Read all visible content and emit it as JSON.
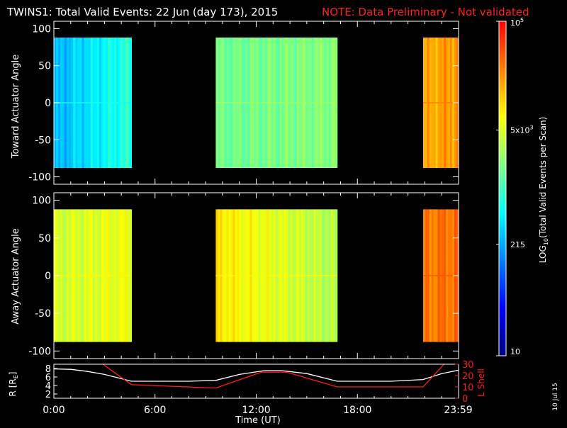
{
  "header": {
    "title": "TWINS1: Total Valid Events: 22 Jun (day 173), 2015",
    "note": "NOTE: Data Preliminary - Not validated"
  },
  "colors": {
    "background": "#000000",
    "axis": "#ffffff",
    "note": "#ff2020",
    "r_line": "#ffffff",
    "lshell_line": "#ff1a1a"
  },
  "colorbar": {
    "label": "LOG10(Total Valid Events per Scan)",
    "label_parts": [
      "LOG",
      "10",
      "(Total Valid Events per Scan)"
    ],
    "tick_labels": [
      {
        "text": "10",
        "value": 10
      },
      {
        "text": "215",
        "value": 215
      },
      {
        "text": "5x10",
        "sup": "3",
        "value": 5000
      },
      {
        "text": "10",
        "sup": "5",
        "value": 100000
      }
    ],
    "colormap": [
      "#000080",
      "#0000ff",
      "#0080ff",
      "#00ffff",
      "#80ff80",
      "#ffff00",
      "#ff8000",
      "#ff0000"
    ]
  },
  "footer": {
    "date_stamp": "10 Jul 15"
  },
  "chart_data": [
    {
      "type": "heatmap",
      "ylabel": "Toward Actuator Angle",
      "xlim": [
        0,
        24
      ],
      "ylim": [
        -110,
        110
      ],
      "yticks": [
        "100",
        "50",
        "0",
        "-50",
        "-100"
      ],
      "ytick_values": [
        100,
        50,
        0,
        -50,
        -100
      ],
      "data_y_range": [
        -88,
        88
      ],
      "blocks": [
        {
          "x_start": 0.0,
          "x_end": 4.6,
          "level_start": 0.34,
          "level_end": 0.48
        },
        {
          "x_start": 9.6,
          "x_end": 16.8,
          "level_start": 0.55,
          "level_end": 0.58
        },
        {
          "x_start": 21.9,
          "x_end": 23.99,
          "level_start": 0.8,
          "level_end": 0.84
        }
      ]
    },
    {
      "type": "heatmap",
      "ylabel": "Away Actuator Angle",
      "xlim": [
        0,
        24
      ],
      "ylim": [
        -110,
        110
      ],
      "yticks": [
        "100",
        "50",
        "0",
        "-50",
        "-100"
      ],
      "ytick_values": [
        100,
        50,
        0,
        -50,
        -100
      ],
      "data_y_range": [
        -88,
        88
      ],
      "blocks": [
        {
          "x_start": 0.0,
          "x_end": 4.6,
          "level_start": 0.66,
          "level_end": 0.7
        },
        {
          "x_start": 9.6,
          "x_end": 16.8,
          "level_start": 0.74,
          "level_end": 0.62
        },
        {
          "x_start": 21.9,
          "x_end": 23.99,
          "level_start": 0.86,
          "level_end": 0.88
        }
      ]
    },
    {
      "type": "line",
      "xlabel": "Time (UT)",
      "ylabel": "R [RE]",
      "ylabel_parts": [
        "R [R",
        "E",
        "]"
      ],
      "ylabel2": "L Shell",
      "xlim": [
        0,
        24
      ],
      "ylim": [
        1,
        9
      ],
      "ylim2": [
        0,
        30
      ],
      "xticks": [
        "0:00",
        "6:00",
        "12:00",
        "18:00",
        "23:59"
      ],
      "xtick_values": [
        0,
        6,
        12,
        18,
        23.98
      ],
      "yticks": [
        "2",
        "4",
        "6",
        "8"
      ],
      "ytick_values": [
        2,
        4,
        6,
        8
      ],
      "yticks2": [
        "0",
        "10",
        "20",
        "30"
      ],
      "ytick2_values": [
        0,
        10,
        20,
        30
      ],
      "series": [
        {
          "axis": "left",
          "x": [
            0,
            1,
            2,
            3,
            4,
            4.6,
            6,
            8,
            9.6,
            11,
            12.5,
            13.5,
            15,
            16.8,
            18,
            20,
            21.9,
            23,
            24
          ],
          "values": [
            7.9,
            7.8,
            7.3,
            6.6,
            5.6,
            5.0,
            5.0,
            5.0,
            5.2,
            6.6,
            7.5,
            7.5,
            6.8,
            5.0,
            5.0,
            5.0,
            5.4,
            6.8,
            7.6
          ]
        },
        {
          "axis": "right",
          "x": [
            2.9,
            4.6,
            9.6,
            12.3,
            13.8,
            16.8,
            21.9,
            23.2
          ],
          "values": [
            30,
            12,
            9,
            23,
            23,
            10,
            10,
            31
          ]
        }
      ]
    }
  ]
}
